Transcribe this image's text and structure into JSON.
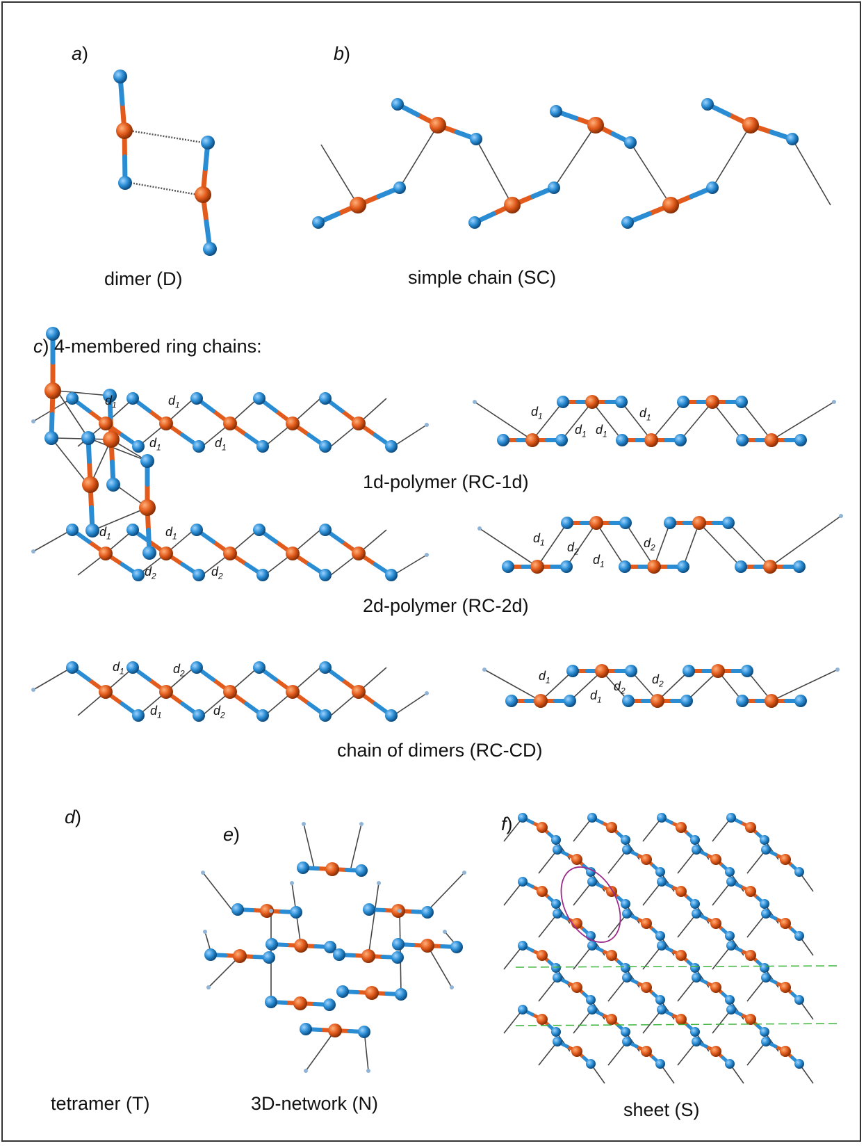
{
  "panels": {
    "a": {
      "letter": "a",
      "paren": ")",
      "caption": "dimer (D)"
    },
    "b": {
      "letter": "b",
      "paren": ")",
      "caption": "simple chain (SC)"
    },
    "c": {
      "letter": "c",
      "paren": ") 4-membered ring chains:"
    },
    "rc1d": {
      "caption": "1d-polymer (RC-1d)"
    },
    "rc2d": {
      "caption": "2d-polymer (RC-2d)"
    },
    "rccd": {
      "caption": "chain of dimers (RC-CD)"
    },
    "d": {
      "letter": "d",
      "paren": ")",
      "caption": "tetramer (T)"
    },
    "e": {
      "letter": "e",
      "paren": ")",
      "caption": "3D-network (N)"
    },
    "f": {
      "letter": "f",
      "paren": ")",
      "caption": "sheet (S)"
    }
  },
  "distance_labels": {
    "d1": {
      "base": "d",
      "sub": "1"
    },
    "d2": {
      "base": "d",
      "sub": "2"
    }
  },
  "colors": {
    "metal_atom": "#e25b1c",
    "halogen_atom": "#2a8dd4",
    "contact_line": "#444444",
    "highlight_ellipse": "#9a2b8a",
    "sheet_divider": "#3cb43c"
  }
}
